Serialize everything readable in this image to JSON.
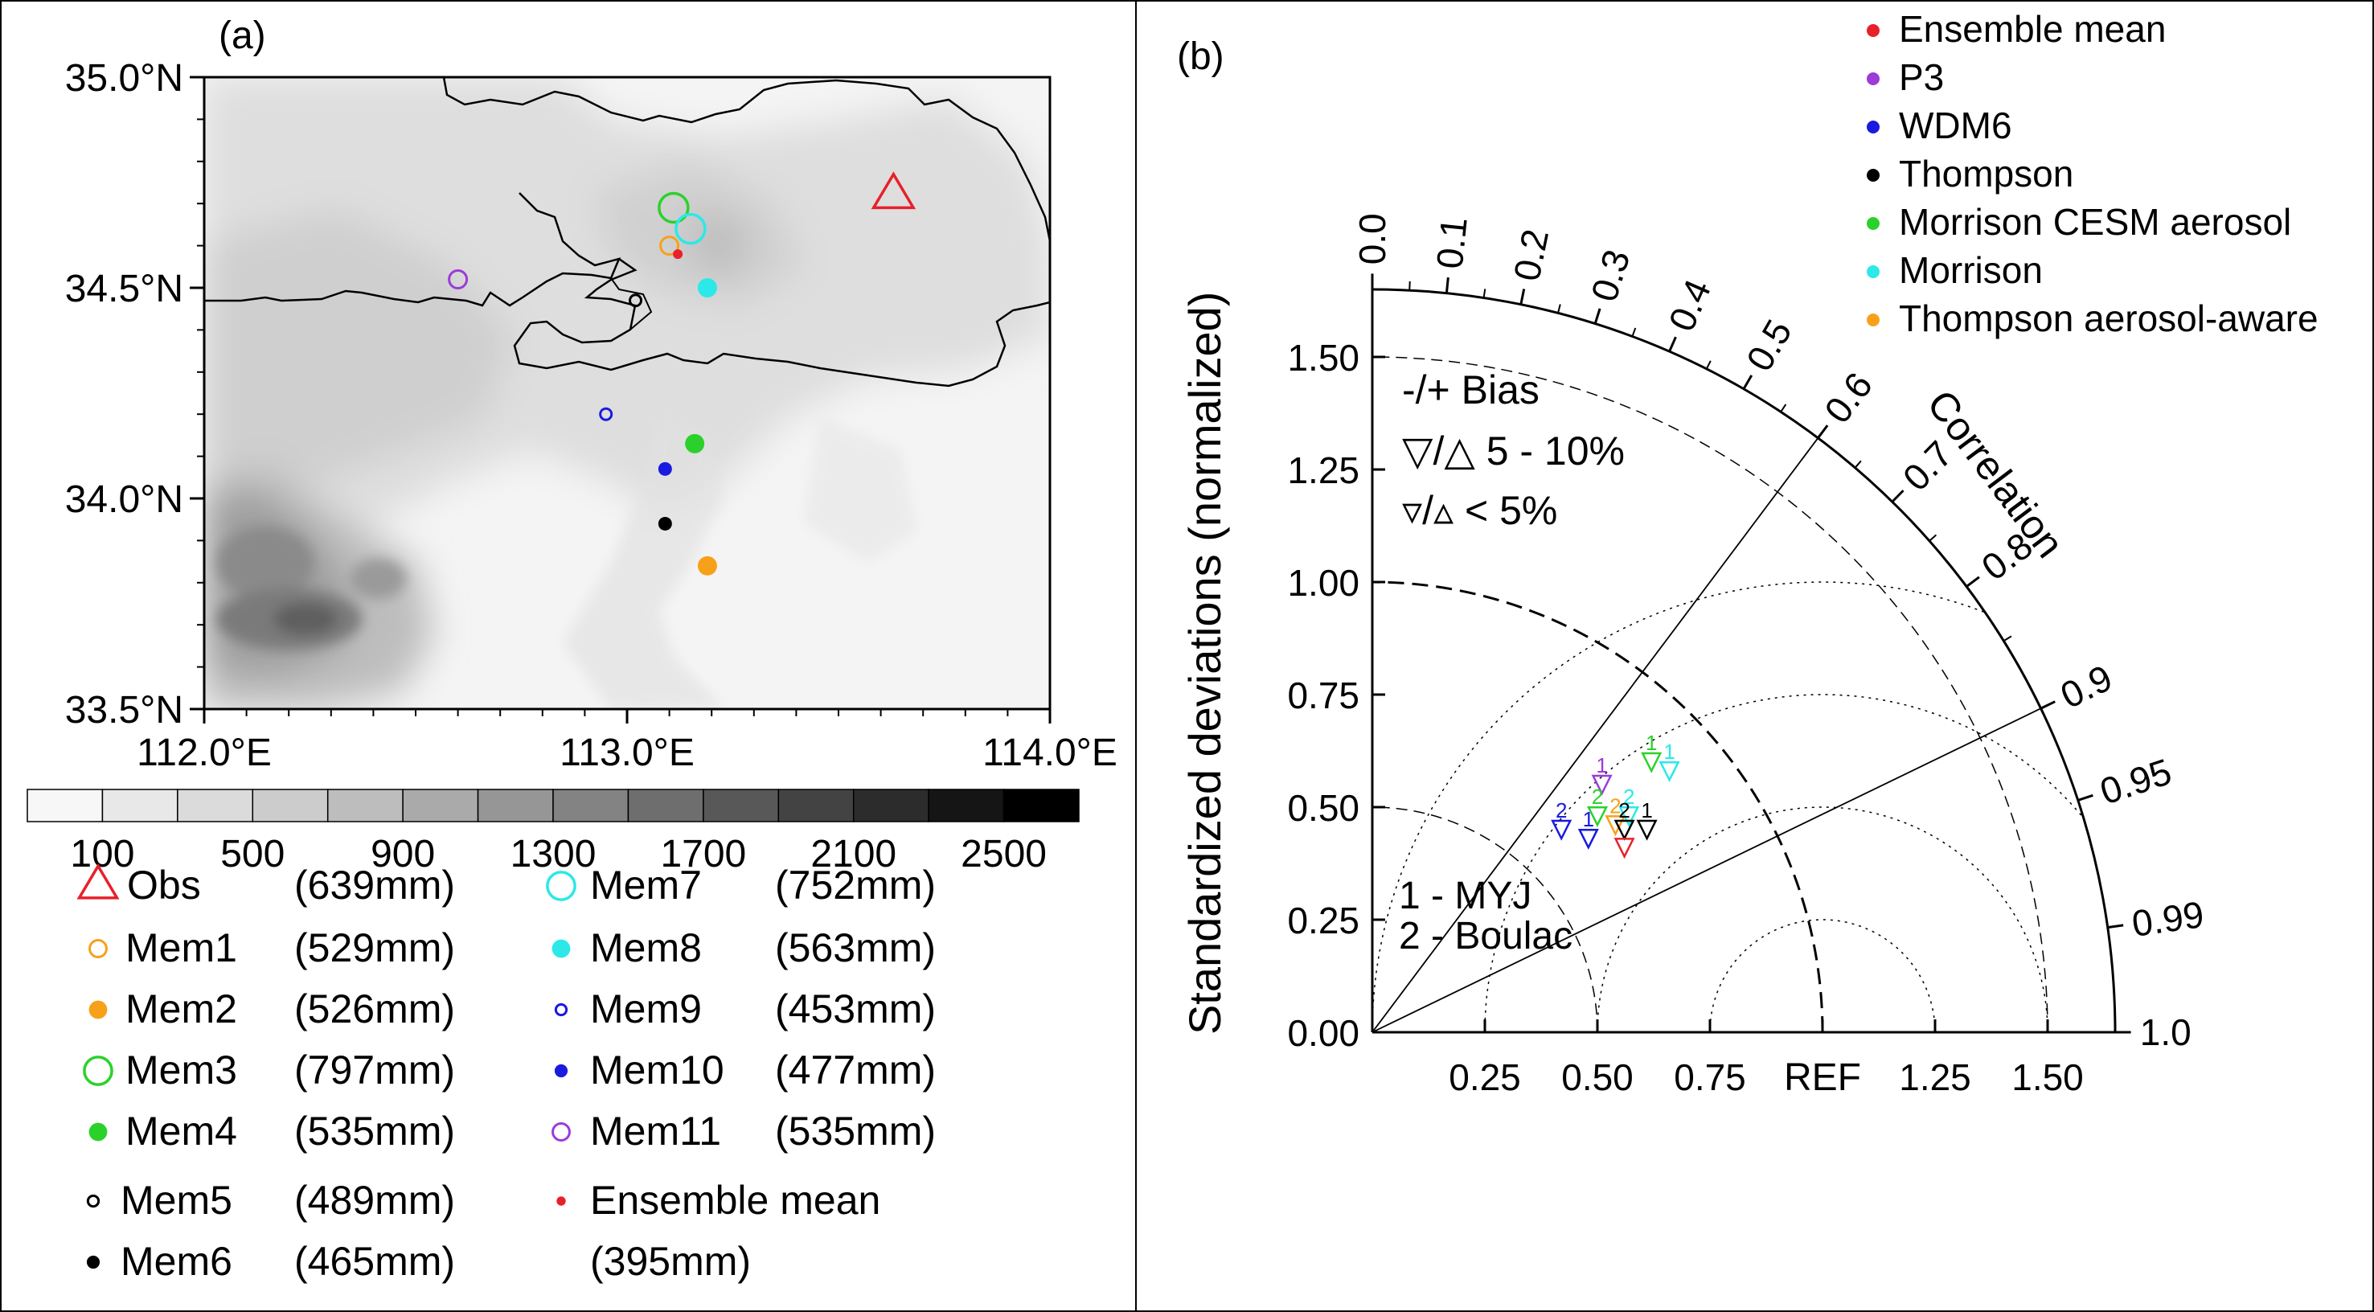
{
  "chart_data": [
    {
      "type": "heatmap",
      "panel_label": "(a)",
      "y_ticks": [
        "35.0°N",
        "34.5°N",
        "34.0°N",
        "33.5°N"
      ],
      "x_ticks": [
        "112.0°E",
        "113.0°E",
        "114.0°E"
      ],
      "xlim": [
        112.0,
        114.0
      ],
      "ylim": [
        33.5,
        35.0
      ],
      "colorbar": {
        "levels": [
          100,
          300,
          500,
          700,
          900,
          1100,
          1300,
          1500,
          1700,
          1900,
          2100,
          2300,
          2500
        ],
        "tick_labels": [
          "100",
          "500",
          "900",
          "1300",
          "1700",
          "2100",
          "2500"
        ],
        "colors": [
          "#f7f7f7",
          "#e8e8e8",
          "#dbdbdb",
          "#cccccc",
          "#bdbdbd",
          "#aaaaaa",
          "#969696",
          "#838383",
          "#6e6e6e",
          "#585858",
          "#434343",
          "#2c2c2c",
          "#151515",
          "#000000"
        ]
      },
      "markers": [
        {
          "name": "Obs",
          "value": "(639mm)",
          "lon": 113.63,
          "lat": 34.72,
          "symbol": "triangle-open",
          "color": "#e8202a"
        },
        {
          "name": "Mem1",
          "value": "(529mm)",
          "lon": 113.1,
          "lat": 34.6,
          "symbol": "circle-open-small",
          "color": "#f7a11a"
        },
        {
          "name": "Mem2",
          "value": "(526mm)",
          "lon": 113.19,
          "lat": 33.84,
          "symbol": "circle-filled",
          "color": "#f7a11a"
        },
        {
          "name": "Mem3",
          "value": "(797mm)",
          "lon": 113.11,
          "lat": 34.69,
          "symbol": "circle-open-large",
          "color": "#2bd12b"
        },
        {
          "name": "Mem4",
          "value": "(535mm)",
          "lon": 113.16,
          "lat": 34.13,
          "symbol": "circle-filled",
          "color": "#2bd12b"
        },
        {
          "name": "Mem5",
          "value": "(489mm)",
          "lon": 113.02,
          "lat": 34.47,
          "symbol": "circle-open-tiny",
          "color": "#000000"
        },
        {
          "name": "Mem6",
          "value": "(465mm)",
          "lon": 113.09,
          "lat": 33.94,
          "symbol": "circle-filled-small",
          "color": "#000000"
        },
        {
          "name": "Mem7",
          "value": "(752mm)",
          "lon": 113.15,
          "lat": 34.64,
          "symbol": "circle-open-large",
          "color": "#2ce8e8"
        },
        {
          "name": "Mem8",
          "value": "(563mm)",
          "lon": 113.19,
          "lat": 34.5,
          "symbol": "circle-filled",
          "color": "#2ce8e8"
        },
        {
          "name": "Mem9",
          "value": "(453mm)",
          "lon": 112.95,
          "lat": 34.2,
          "symbol": "circle-open-tiny",
          "color": "#1a1ae0"
        },
        {
          "name": "Mem10",
          "value": "(477mm)",
          "lon": 113.09,
          "lat": 34.07,
          "symbol": "circle-filled-small",
          "color": "#1a1ae0"
        },
        {
          "name": "Mem11",
          "value": "(535mm)",
          "lon": 112.6,
          "lat": 34.52,
          "symbol": "circle-open-small",
          "color": "#9b3bd8"
        },
        {
          "name": "Ensemble mean",
          "value": "(395mm)",
          "lon": 113.12,
          "lat": 34.58,
          "symbol": "dot",
          "color": "#e8202a"
        }
      ]
    },
    {
      "type": "scatter",
      "subtype": "taylor-diagram",
      "panel_label": "(b)",
      "ylabel": "Standardized deviations (normalized)",
      "arc_label": "Correlation",
      "ref_label": "REF",
      "std_max": 1.65,
      "y_ticks": [
        "1.50",
        "1.25",
        "1.00",
        "0.75",
        "0.50",
        "0.25",
        "0.00"
      ],
      "y_tick_values": [
        1.5,
        1.25,
        1.0,
        0.75,
        0.5,
        0.25,
        0.0
      ],
      "x_ticks": [
        "0.25",
        "0.50",
        "0.75",
        "1.25",
        "1.50"
      ],
      "x_tick_values": [
        0.25,
        0.5,
        0.75,
        1.25,
        1.5
      ],
      "corr_ticks": [
        "0.0",
        "0.1",
        "0.2",
        "0.3",
        "0.4",
        "0.5",
        "0.6",
        "0.7",
        "0.8",
        "0.9",
        "0.95",
        "0.99",
        "1.0"
      ],
      "corr_tick_values": [
        0.0,
        0.1,
        0.2,
        0.3,
        0.4,
        0.5,
        0.6,
        0.7,
        0.8,
        0.9,
        0.95,
        0.99,
        1.0
      ],
      "corr_radials": [
        0.6,
        0.9
      ],
      "bias_legend": [
        "-/+ Bias",
        "▽/△  5 - 10%",
        "▿/▵  < 5%"
      ],
      "pbl_legend": [
        "1 - MYJ",
        "2 - Boulac"
      ],
      "legend": [
        {
          "name": "Ensemble mean",
          "color": "#e8202a"
        },
        {
          "name": "P3",
          "color": "#9b3bd8"
        },
        {
          "name": "WDM6",
          "color": "#1a1ae0"
        },
        {
          "name": "Thompson",
          "color": "#000000"
        },
        {
          "name": "Morrison CESM aerosol",
          "color": "#2bd12b"
        },
        {
          "name": "Morrison",
          "color": "#2ce8e8"
        },
        {
          "name": "Thompson aerosol-aware",
          "color": "#f7a11a"
        }
      ],
      "points": [
        {
          "series": "P3",
          "label": "1",
          "x": 0.51,
          "y": 0.55,
          "color": "#9b3bd8"
        },
        {
          "series": "WDM6",
          "label": "2",
          "x": 0.42,
          "y": 0.45,
          "color": "#1a1ae0"
        },
        {
          "series": "WDM6",
          "label": "1",
          "x": 0.48,
          "y": 0.43,
          "color": "#1a1ae0"
        },
        {
          "series": "Morrison CESM aerosol",
          "label": "2",
          "x": 0.5,
          "y": 0.48,
          "color": "#2bd12b"
        },
        {
          "series": "Thompson aerosol-aware",
          "label": "2",
          "x": 0.54,
          "y": 0.46,
          "color": "#f7a11a"
        },
        {
          "series": "Morrison",
          "label": "2",
          "x": 0.57,
          "y": 0.48,
          "color": "#2ce8e8"
        },
        {
          "series": "Thompson",
          "label": "2",
          "x": 0.56,
          "y": 0.45,
          "color": "#000000"
        },
        {
          "series": "Thompson",
          "label": "1",
          "x": 0.61,
          "y": 0.45,
          "color": "#000000"
        },
        {
          "series": "Morrison CESM aerosol",
          "label": "1",
          "x": 0.62,
          "y": 0.6,
          "color": "#2bd12b"
        },
        {
          "series": "Morrison",
          "label": "1",
          "x": 0.66,
          "y": 0.58,
          "color": "#2ce8e8"
        },
        {
          "series": "Ensemble mean",
          "label": "",
          "x": 0.56,
          "y": 0.41,
          "color": "#e8202a"
        }
      ]
    }
  ]
}
